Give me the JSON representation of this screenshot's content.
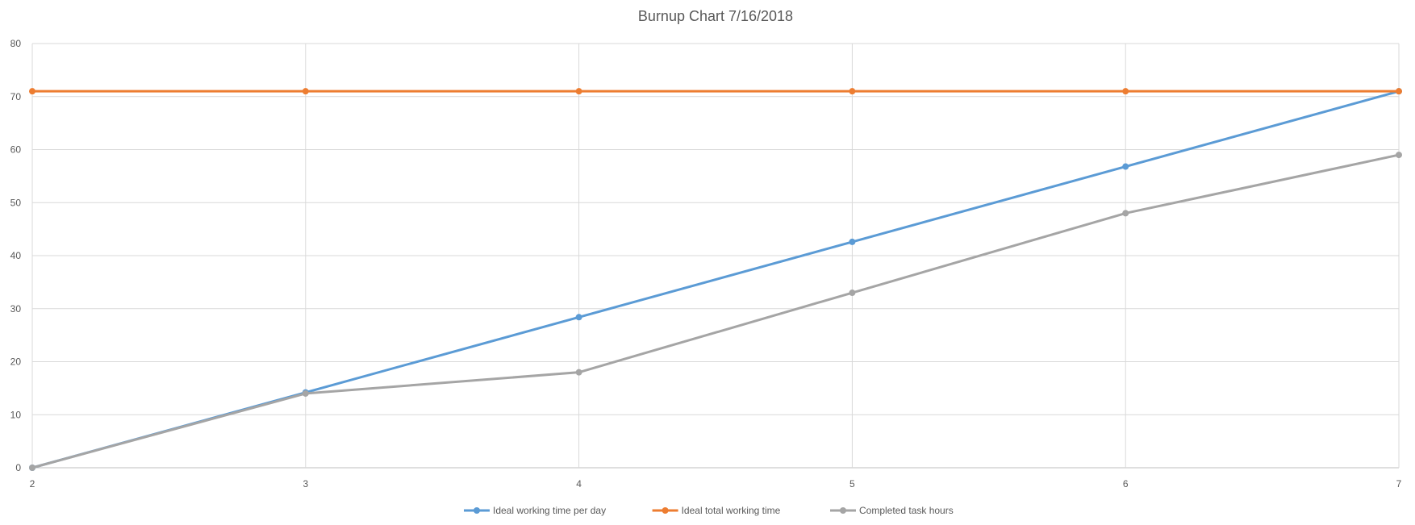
{
  "chart_data": {
    "type": "line",
    "title": "Burnup Chart 7/16/2018",
    "xlabel": "",
    "ylabel": "",
    "x": [
      2,
      3,
      4,
      5,
      6,
      7
    ],
    "xlim": [
      2,
      7
    ],
    "ylim": [
      0,
      80
    ],
    "yticks": [
      0,
      10,
      20,
      30,
      40,
      50,
      60,
      70,
      80
    ],
    "xticks": [
      2,
      3,
      4,
      5,
      6,
      7
    ],
    "grid": true,
    "legend_position": "bottom",
    "series": [
      {
        "name": "Ideal working time per day",
        "color": "#5b9bd5",
        "values": [
          0,
          14.2,
          28.4,
          42.6,
          56.8,
          71
        ]
      },
      {
        "name": "Ideal total working time",
        "color": "#ed7d31",
        "values": [
          71,
          71,
          71,
          71,
          71,
          71
        ]
      },
      {
        "name": "Completed task hours",
        "color": "#a5a5a5",
        "values": [
          0,
          14,
          18,
          33,
          48,
          59
        ]
      }
    ]
  }
}
